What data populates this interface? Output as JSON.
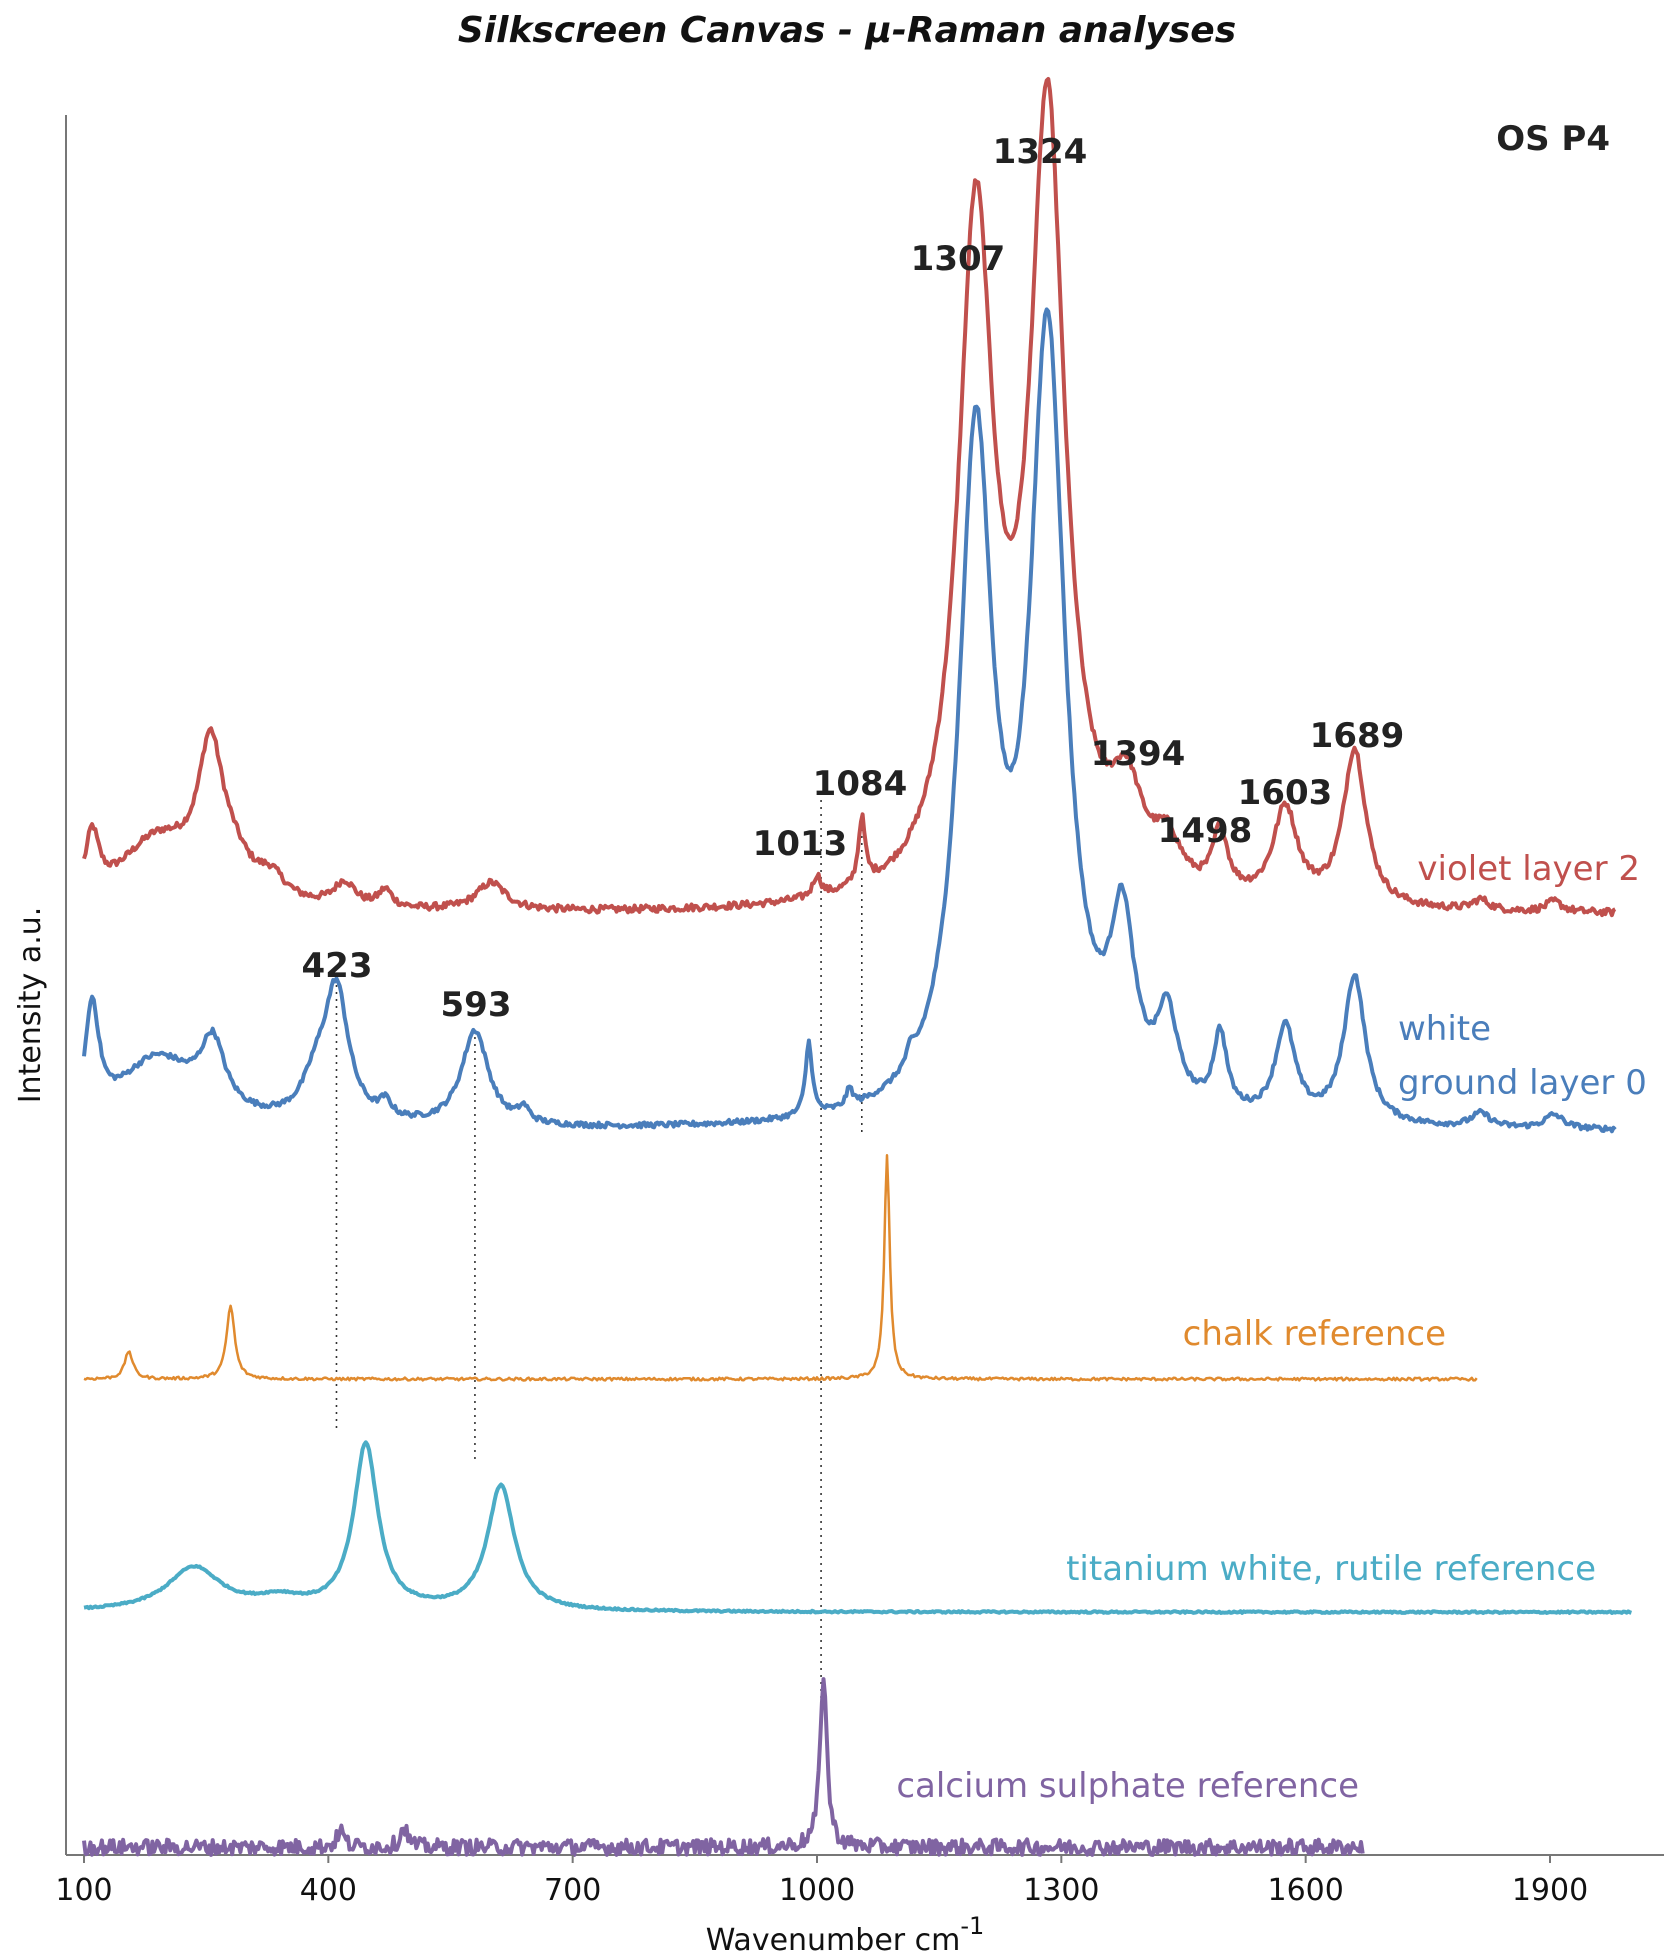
{
  "chart_data": {
    "type": "line",
    "title": "Silkscreen Canvas - μ-Raman analyses",
    "sample_label": "OS P4",
    "xlabel": "Wavenumber cm",
    "xlabel_superscript": "-1",
    "ylabel": "Intensity a.u.",
    "xlim": [
      100,
      2000
    ],
    "ylim": [
      0,
      1
    ],
    "x_ticks": [
      100,
      400,
      700,
      1000,
      1300,
      1600,
      1900
    ],
    "x_tick_labels": [
      "100",
      "400",
      "700",
      "1000",
      "1300",
      "1600",
      "1900"
    ],
    "series": [
      {
        "name": "violet layer 2",
        "color": "#c0504d",
        "baseline": 0.54,
        "end": 1980,
        "peaks": [
          [
            110,
            0.035,
            10
          ],
          [
            190,
            0.04,
            60
          ],
          [
            255,
            0.075,
            18
          ],
          [
            280,
            0.02,
            30
          ],
          [
            330,
            0.012,
            20
          ],
          [
            420,
            0.014,
            16
          ],
          [
            470,
            0.01,
            10
          ],
          [
            600,
            0.016,
            22
          ],
          [
            1000,
            0.012,
            6
          ],
          [
            1055,
            0.038,
            5
          ],
          [
            1195,
            0.385,
            26
          ],
          [
            1283,
            0.445,
            26
          ],
          [
            1380,
            0.05,
            24
          ],
          [
            1430,
            0.025,
            20
          ],
          [
            1495,
            0.036,
            11
          ],
          [
            1575,
            0.054,
            18
          ],
          [
            1660,
            0.09,
            17
          ],
          [
            1815,
            0.006,
            12
          ],
          [
            1905,
            0.006,
            12
          ]
        ],
        "noise": 0.002
      },
      {
        "name": "white ground layer 0",
        "label_lines": [
          "white",
          "ground layer 0"
        ],
        "color": "#4a7ebb",
        "baseline": 0.4155,
        "end": 1980,
        "peaks": [
          [
            110,
            0.062,
            10
          ],
          [
            190,
            0.04,
            60
          ],
          [
            258,
            0.038,
            18
          ],
          [
            410,
            0.075,
            18
          ],
          [
            385,
            0.02,
            20
          ],
          [
            470,
            0.009,
            9
          ],
          [
            580,
            0.055,
            20
          ],
          [
            640,
            0.008,
            8
          ],
          [
            990,
            0.042,
            5
          ],
          [
            1040,
            0.01,
            5
          ],
          [
            1115,
            0.008,
            6
          ],
          [
            1195,
            0.38,
            25
          ],
          [
            1283,
            0.44,
            26
          ],
          [
            1375,
            0.097,
            18
          ],
          [
            1430,
            0.05,
            15
          ],
          [
            1495,
            0.044,
            10
          ],
          [
            1575,
            0.053,
            15
          ],
          [
            1660,
            0.085,
            16
          ],
          [
            1815,
            0.008,
            14
          ],
          [
            1905,
            0.008,
            14
          ]
        ],
        "noise": 0.0015
      },
      {
        "name": "chalk reference",
        "color": "#e08a2e",
        "baseline": 0.2735,
        "end": 1810,
        "peaks": [
          [
            155,
            0.016,
            6
          ],
          [
            280,
            0.042,
            6
          ],
          [
            1086,
            0.128,
            4
          ]
        ],
        "noise": 0.0008
      },
      {
        "name": "titanium white, rutile reference",
        "color": "#4bacc6",
        "baseline": 0.1395,
        "end": 2000,
        "peaks": [
          [
            235,
            0.025,
            40
          ],
          [
            340,
            0.006,
            35
          ],
          [
            446,
            0.095,
            18
          ],
          [
            612,
            0.072,
            20
          ]
        ],
        "noise": 0.0005
      },
      {
        "name": "calcium sulphate reference",
        "color": "#8064a2",
        "baseline": 0.0045,
        "end": 1670,
        "peaks": [
          [
            1008,
            0.1,
            5
          ],
          [
            415,
            0.01,
            5
          ],
          [
            493,
            0.012,
            5
          ]
        ],
        "noise": 0.0045
      }
    ],
    "annotations": [
      {
        "label": "1307",
        "x": 1195
      },
      {
        "label": "1324",
        "x": 1283
      },
      {
        "label": "1394",
        "x": 1380
      },
      {
        "label": "1498",
        "x": 1495
      },
      {
        "label": "1603",
        "x": 1575
      },
      {
        "label": "1689",
        "x": 1660
      },
      {
        "label": "1013",
        "x": 1005
      },
      {
        "label": "1084",
        "x": 1055
      },
      {
        "label": "423",
        "x": 410
      },
      {
        "label": "593",
        "x": 580
      }
    ],
    "reference_lines": [
      410,
      580,
      1005,
      1055
    ]
  }
}
